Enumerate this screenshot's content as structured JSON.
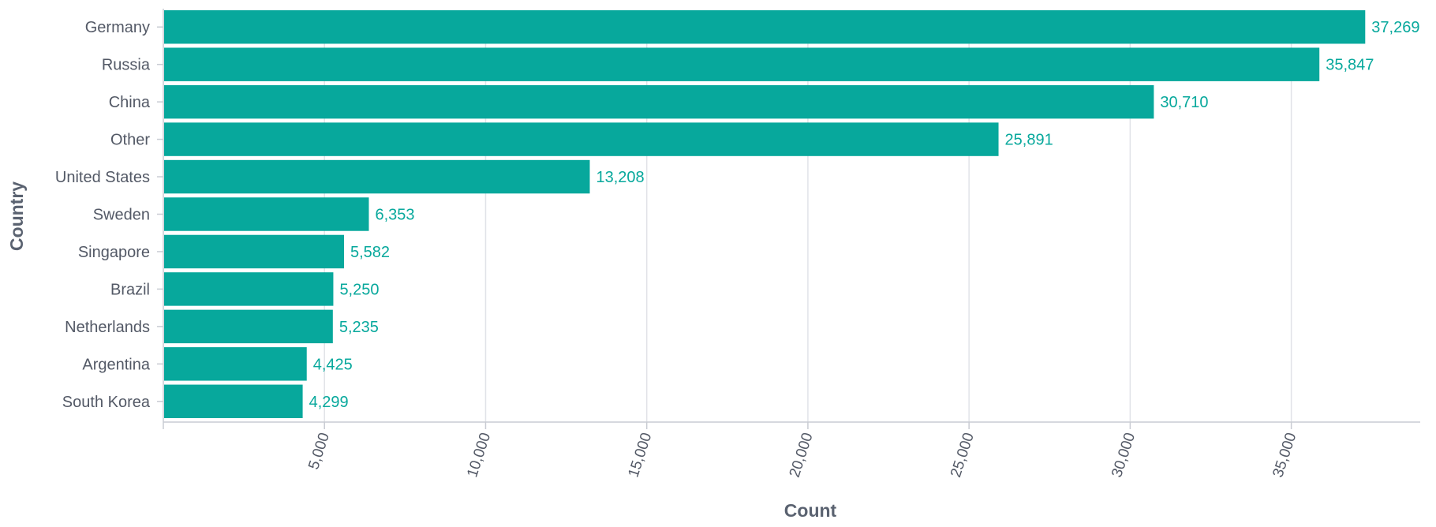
{
  "chart_data": {
    "type": "bar",
    "orientation": "horizontal",
    "title": "",
    "xlabel": "Count",
    "ylabel": "Country",
    "categories": [
      "Germany",
      "Russia",
      "China",
      "Other",
      "United States",
      "Sweden",
      "Singapore",
      "Brazil",
      "Netherlands",
      "Argentina",
      "South Korea"
    ],
    "values": [
      37269,
      35847,
      30710,
      25891,
      13208,
      6353,
      5582,
      5250,
      5235,
      4425,
      4299
    ],
    "value_labels": [
      "37,269",
      "35,847",
      "30,710",
      "25,891",
      "13,208",
      "6,353",
      "5,582",
      "5,250",
      "5,235",
      "4,425",
      "4,299"
    ],
    "xlim": [
      0,
      39000
    ],
    "x_ticks": [
      5000,
      10000,
      15000,
      20000,
      25000,
      30000,
      35000
    ],
    "x_tick_labels": [
      "5,000",
      "10,000",
      "15,000",
      "20,000",
      "25,000",
      "30,000",
      "35,000"
    ],
    "grid": true,
    "legend": "none",
    "colors": {
      "bar": "#07a89c",
      "value_label": "#07a89c",
      "grid": "#e1e3e8",
      "axis": "#c9ccd3",
      "text": "#535966"
    }
  }
}
